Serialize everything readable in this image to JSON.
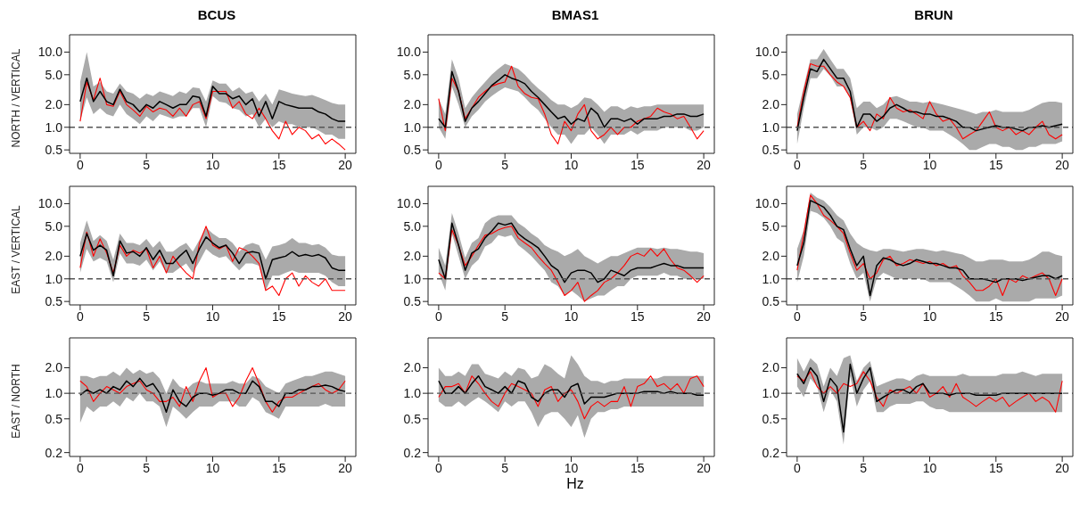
{
  "chart_data": [
    {
      "type": "line",
      "title": "BCUS",
      "ylabel": "NORTH / VERTICAL",
      "log": true,
      "xlim": [
        -0.8,
        20.8
      ],
      "xticks": [
        0,
        5,
        10,
        15,
        20
      ],
      "ylim": [
        0.45,
        17
      ],
      "yticks": [
        {
          "value": 0.5,
          "label": "0.5"
        },
        {
          "value": 1,
          "label": "1.0"
        },
        {
          "value": 2,
          "label": "2.0"
        },
        {
          "value": 5,
          "label": "5.0"
        },
        {
          "value": 10,
          "label": "10.0"
        }
      ],
      "ref_lines": [
        {
          "axis": "y",
          "value": 1,
          "line_style": "dashed",
          "color": "#555555"
        }
      ],
      "x": [
        0,
        0.5,
        1,
        1.5,
        2,
        2.5,
        3,
        3.5,
        4,
        4.5,
        5,
        5.5,
        6,
        6.5,
        7,
        7.5,
        8,
        8.5,
        9,
        9.5,
        10,
        10.5,
        11,
        11.5,
        12,
        12.5,
        13,
        13.5,
        14,
        14.5,
        15,
        15.5,
        16,
        16.5,
        17,
        17.5,
        18,
        18.5,
        19,
        19.5,
        20
      ],
      "series": [
        {
          "color": "#ff0000",
          "values": [
            1.2,
            4.0,
            2.3,
            4.5,
            2.0,
            1.9,
            3.0,
            2.0,
            1.7,
            1.4,
            1.9,
            1.6,
            1.8,
            1.7,
            1.4,
            1.8,
            1.4,
            2.0,
            2.2,
            1.3,
            3.0,
            3.0,
            3.0,
            1.8,
            2.2,
            1.5,
            1.3,
            1.8,
            1.3,
            0.9,
            0.7,
            1.2,
            0.8,
            1.0,
            0.9,
            0.7,
            0.8,
            0.6,
            0.7,
            0.6,
            0.5
          ]
        },
        {
          "color": "#000000",
          "values": [
            2.2,
            4.5,
            2.2,
            3.0,
            2.2,
            2.0,
            3.2,
            2.2,
            2.0,
            1.6,
            2.0,
            1.8,
            2.2,
            2.0,
            1.8,
            2.0,
            2.0,
            2.6,
            2.5,
            1.4,
            3.5,
            2.8,
            2.8,
            2.4,
            2.6,
            2.0,
            2.4,
            1.4,
            2.2,
            1.3,
            2.2,
            2.0,
            1.9,
            1.8,
            1.8,
            1.8,
            1.6,
            1.5,
            1.3,
            1.2,
            1.2
          ],
          "lower": [
            1.2,
            2.5,
            1.5,
            1.8,
            1.5,
            1.4,
            2.0,
            1.5,
            1.3,
            1.1,
            1.4,
            1.2,
            1.5,
            1.4,
            1.3,
            1.4,
            1.4,
            1.8,
            1.8,
            1.0,
            2.6,
            2.2,
            2.1,
            1.8,
            1.7,
            1.4,
            1.5,
            1.0,
            1.3,
            1.0,
            1.2,
            1.1,
            1.1,
            1.0,
            1.0,
            1.0,
            0.9,
            0.8,
            0.8,
            0.7,
            0.7
          ],
          "upper": [
            4.0,
            10.0,
            3.5,
            4.0,
            3.0,
            2.8,
            3.8,
            3.0,
            2.8,
            2.4,
            2.8,
            2.6,
            3.0,
            2.8,
            2.6,
            3.0,
            2.8,
            3.4,
            3.3,
            2.2,
            4.2,
            3.8,
            3.8,
            3.0,
            3.4,
            2.8,
            3.0,
            2.2,
            2.8,
            2.0,
            3.2,
            3.0,
            2.8,
            2.7,
            2.6,
            2.7,
            2.5,
            2.3,
            2.1,
            2.0,
            2.0
          ]
        }
      ]
    },
    {
      "type": "line",
      "title": "BMAS1",
      "log": true,
      "xlim": [
        -0.8,
        20.8
      ],
      "xticks": [
        0,
        5,
        10,
        15,
        20
      ],
      "ylim": [
        0.45,
        17
      ],
      "yticks": [
        {
          "value": 0.5,
          "label": "0.5"
        },
        {
          "value": 1,
          "label": "1.0"
        },
        {
          "value": 2,
          "label": "2.0"
        },
        {
          "value": 5,
          "label": "5.0"
        },
        {
          "value": 10,
          "label": "10.0"
        }
      ],
      "ref_lines": [
        {
          "axis": "y",
          "value": 1,
          "line_style": "dashed",
          "color": "#555555"
        }
      ],
      "x": [
        0,
        0.5,
        1,
        1.5,
        2,
        2.5,
        3,
        3.5,
        4,
        4.5,
        5,
        5.5,
        6,
        6.5,
        7,
        7.5,
        8,
        8.5,
        9,
        9.5,
        10,
        10.5,
        11,
        11.5,
        12,
        12.5,
        13,
        13.5,
        14,
        14.5,
        15,
        15.5,
        16,
        16.5,
        17,
        17.5,
        18,
        18.5,
        19,
        19.5,
        20
      ],
      "series": [
        {
          "color": "#ff0000",
          "values": [
            2.4,
            0.9,
            4.5,
            3.0,
            1.3,
            1.8,
            2.5,
            3.0,
            3.5,
            3.8,
            4.0,
            6.5,
            3.5,
            2.8,
            2.5,
            2.4,
            1.5,
            0.8,
            0.6,
            1.2,
            0.9,
            1.5,
            2.0,
            0.9,
            0.7,
            0.8,
            1.0,
            0.8,
            1.0,
            1.0,
            1.2,
            1.3,
            1.4,
            1.8,
            1.6,
            1.5,
            1.3,
            1.4,
            1.0,
            0.7,
            0.9
          ]
        },
        {
          "color": "#000000",
          "values": [
            1.3,
            1.0,
            5.5,
            3.0,
            1.2,
            1.8,
            2.2,
            2.8,
            3.6,
            4.2,
            5.0,
            4.5,
            4.2,
            3.8,
            3.0,
            2.5,
            2.0,
            1.6,
            1.3,
            1.4,
            1.1,
            1.3,
            1.2,
            1.8,
            1.5,
            1.0,
            1.3,
            1.3,
            1.2,
            1.3,
            1.1,
            1.3,
            1.3,
            1.3,
            1.4,
            1.4,
            1.5,
            1.5,
            1.4,
            1.4,
            1.5
          ],
          "lower": [
            1.0,
            0.7,
            3.5,
            2.0,
            1.0,
            1.4,
            1.7,
            2.2,
            2.6,
            3.0,
            3.4,
            3.2,
            3.0,
            2.5,
            2.0,
            1.7,
            1.3,
            1.0,
            0.8,
            0.8,
            0.6,
            0.8,
            0.8,
            1.0,
            0.8,
            0.6,
            0.8,
            0.8,
            0.8,
            0.9,
            0.8,
            0.9,
            0.9,
            0.9,
            1.0,
            1.0,
            1.0,
            1.0,
            0.9,
            0.9,
            1.0
          ],
          "upper": [
            2.4,
            1.5,
            8.0,
            4.5,
            1.8,
            2.5,
            3.2,
            4.0,
            5.0,
            6.0,
            7.0,
            6.5,
            6.0,
            5.0,
            4.0,
            3.3,
            2.8,
            2.3,
            2.0,
            2.0,
            1.8,
            2.0,
            2.5,
            2.4,
            2.0,
            1.6,
            1.9,
            1.9,
            1.7,
            1.9,
            1.8,
            1.9,
            1.9,
            2.0,
            2.0,
            2.0,
            2.0,
            2.0,
            2.0,
            2.0,
            2.0
          ]
        }
      ]
    },
    {
      "type": "line",
      "title": "BRUN",
      "log": true,
      "xlim": [
        -0.8,
        20.8
      ],
      "xticks": [
        0,
        5,
        10,
        15,
        20
      ],
      "ylim": [
        0.45,
        17
      ],
      "yticks": [
        {
          "value": 0.5,
          "label": "0.5"
        },
        {
          "value": 1,
          "label": "1.0"
        },
        {
          "value": 2,
          "label": "2.0"
        },
        {
          "value": 5,
          "label": "5.0"
        },
        {
          "value": 10,
          "label": "10.0"
        }
      ],
      "ref_lines": [
        {
          "axis": "y",
          "value": 1,
          "line_style": "dashed",
          "color": "#555555"
        }
      ],
      "x": [
        0,
        0.5,
        1,
        1.5,
        2,
        2.5,
        3,
        3.5,
        4,
        4.5,
        5,
        5.5,
        6,
        6.5,
        7,
        7.5,
        8,
        8.5,
        9,
        9.5,
        10,
        10.5,
        11,
        11.5,
        12,
        12.5,
        13,
        13.5,
        14,
        14.5,
        15,
        15.5,
        16,
        16.5,
        17,
        17.5,
        18,
        18.5,
        19,
        19.5,
        20
      ],
      "series": [
        {
          "color": "#ff0000",
          "values": [
            1.0,
            3.0,
            7.0,
            6.5,
            6.5,
            5.0,
            4.0,
            3.5,
            2.5,
            1.0,
            1.2,
            0.9,
            1.5,
            1.3,
            2.5,
            1.8,
            1.6,
            1.7,
            1.5,
            1.3,
            2.2,
            1.5,
            1.2,
            1.3,
            1.0,
            0.7,
            0.8,
            0.9,
            1.2,
            1.6,
            1.0,
            0.9,
            1.0,
            0.8,
            0.9,
            0.8,
            1.0,
            1.2,
            0.8,
            0.7,
            0.8
          ]
        },
        {
          "color": "#000000",
          "values": [
            0.9,
            2.5,
            6.0,
            5.5,
            8.0,
            6.0,
            4.5,
            4.5,
            3.0,
            1.0,
            1.5,
            1.5,
            1.2,
            1.4,
            1.8,
            2.0,
            1.8,
            1.6,
            1.6,
            1.5,
            1.5,
            1.4,
            1.4,
            1.3,
            1.2,
            1.0,
            1.0,
            0.9,
            0.95,
            1.0,
            1.05,
            1.0,
            1.0,
            0.95,
            0.9,
            1.0,
            1.0,
            1.05,
            1.0,
            1.05,
            1.1
          ],
          "lower": [
            0.6,
            1.8,
            4.5,
            4.5,
            6.0,
            4.8,
            3.5,
            3.5,
            2.4,
            0.8,
            1.0,
            1.0,
            0.9,
            1.0,
            1.3,
            1.3,
            1.2,
            1.1,
            1.0,
            1.0,
            0.9,
            0.9,
            0.9,
            0.8,
            0.7,
            0.6,
            0.5,
            0.5,
            0.55,
            0.6,
            0.6,
            0.55,
            0.55,
            0.5,
            0.5,
            0.55,
            0.55,
            0.6,
            0.6,
            0.6,
            0.65
          ],
          "upper": [
            1.5,
            3.5,
            8.0,
            8.0,
            11.0,
            8.0,
            6.0,
            6.0,
            4.5,
            1.8,
            2.2,
            2.2,
            1.8,
            2.0,
            2.5,
            2.6,
            2.4,
            2.2,
            2.2,
            2.1,
            2.2,
            2.1,
            2.0,
            1.9,
            1.8,
            1.7,
            1.6,
            1.5,
            1.6,
            1.6,
            1.7,
            1.6,
            1.6,
            1.6,
            1.6,
            1.7,
            1.9,
            2.1,
            2.2,
            2.2,
            2.1
          ]
        }
      ]
    },
    {
      "type": "line",
      "ylabel": "EAST / VERTICAL",
      "log": true,
      "xlim": [
        -0.8,
        20.8
      ],
      "xticks": [
        0,
        5,
        10,
        15,
        20
      ],
      "ylim": [
        0.45,
        17
      ],
      "yticks": [
        {
          "value": 0.5,
          "label": "0.5"
        },
        {
          "value": 1,
          "label": "1.0"
        },
        {
          "value": 2,
          "label": "2.0"
        },
        {
          "value": 5,
          "label": "5.0"
        },
        {
          "value": 10,
          "label": "10.0"
        }
      ],
      "ref_lines": [
        {
          "axis": "y",
          "value": 1,
          "line_style": "dashed",
          "color": "#555555"
        }
      ],
      "x": [
        0,
        0.5,
        1,
        1.5,
        2,
        2.5,
        3,
        3.5,
        4,
        4.5,
        5,
        5.5,
        6,
        6.5,
        7,
        7.5,
        8,
        8.5,
        9,
        9.5,
        10,
        10.5,
        11,
        11.5,
        12,
        12.5,
        13,
        13.5,
        14,
        14.5,
        15,
        15.5,
        16,
        16.5,
        17,
        17.5,
        18,
        18.5,
        19,
        19.5,
        20
      ],
      "series": [
        {
          "color": "#ff0000",
          "values": [
            1.4,
            4.2,
            2.0,
            3.4,
            2.2,
            1.2,
            2.8,
            2.0,
            2.4,
            2.2,
            2.5,
            1.4,
            2.0,
            1.2,
            2.0,
            1.5,
            1.2,
            1.0,
            3.0,
            5.0,
            2.8,
            2.5,
            2.8,
            1.7,
            2.6,
            2.4,
            2.0,
            1.6,
            0.7,
            0.8,
            0.6,
            1.0,
            1.2,
            0.8,
            1.1,
            0.9,
            0.8,
            1.0,
            0.7,
            0.7,
            0.7
          ]
        },
        {
          "color": "#000000",
          "values": [
            2.0,
            4.0,
            2.4,
            2.8,
            2.4,
            1.1,
            3.2,
            2.2,
            2.3,
            2.0,
            2.6,
            1.8,
            2.4,
            1.6,
            1.6,
            2.0,
            2.4,
            1.6,
            2.5,
            3.6,
            3.0,
            2.6,
            2.8,
            2.2,
            1.6,
            2.2,
            2.3,
            2.2,
            1.0,
            1.8,
            1.9,
            2.0,
            2.3,
            2.0,
            2.1,
            2.0,
            2.1,
            1.9,
            1.4,
            1.3,
            1.3
          ],
          "lower": [
            1.2,
            2.5,
            1.7,
            1.9,
            1.7,
            0.9,
            2.2,
            1.6,
            1.6,
            1.5,
            1.8,
            1.3,
            1.7,
            1.2,
            1.2,
            1.4,
            1.6,
            1.2,
            1.7,
            2.5,
            2.1,
            1.9,
            2.0,
            1.6,
            1.3,
            1.6,
            1.6,
            1.5,
            0.7,
            1.1,
            1.1,
            1.2,
            1.3,
            1.2,
            1.2,
            1.2,
            1.2,
            1.1,
            0.9,
            0.8,
            0.8
          ],
          "upper": [
            3.0,
            6.0,
            3.2,
            3.8,
            3.2,
            1.8,
            4.0,
            3.0,
            3.0,
            2.8,
            3.4,
            2.6,
            3.2,
            2.3,
            2.3,
            2.7,
            3.0,
            2.3,
            3.3,
            4.8,
            4.0,
            3.5,
            3.5,
            3.0,
            2.3,
            2.8,
            3.0,
            2.8,
            1.8,
            2.7,
            2.8,
            3.0,
            3.5,
            3.0,
            3.0,
            2.8,
            2.9,
            2.6,
            2.1,
            2.0,
            2.0
          ]
        }
      ]
    },
    {
      "type": "line",
      "log": true,
      "xlim": [
        -0.8,
        20.8
      ],
      "xticks": [
        0,
        5,
        10,
        15,
        20
      ],
      "ylim": [
        0.45,
        17
      ],
      "yticks": [
        {
          "value": 0.5,
          "label": "0.5"
        },
        {
          "value": 1,
          "label": "1.0"
        },
        {
          "value": 2,
          "label": "2.0"
        },
        {
          "value": 5,
          "label": "5.0"
        },
        {
          "value": 10,
          "label": "10.0"
        }
      ],
      "ref_lines": [
        {
          "axis": "y",
          "value": 1,
          "line_style": "dashed",
          "color": "#555555"
        }
      ],
      "x": [
        0,
        0.5,
        1,
        1.5,
        2,
        2.5,
        3,
        3.5,
        4,
        4.5,
        5,
        5.5,
        6,
        6.5,
        7,
        7.5,
        8,
        8.5,
        9,
        9.5,
        10,
        10.5,
        11,
        11.5,
        12,
        12.5,
        13,
        13.5,
        14,
        14.5,
        15,
        15.5,
        16,
        16.5,
        17,
        17.5,
        18,
        18.5,
        19,
        19.5,
        20
      ],
      "series": [
        {
          "color": "#ff0000",
          "values": [
            1.2,
            1.0,
            4.5,
            2.8,
            1.5,
            2.0,
            2.8,
            3.8,
            4.0,
            4.5,
            4.8,
            5.0,
            3.5,
            3.0,
            2.6,
            2.0,
            1.6,
            1.3,
            0.9,
            0.6,
            0.7,
            0.9,
            0.5,
            0.6,
            0.7,
            0.9,
            1.0,
            1.2,
            1.5,
            2.0,
            2.2,
            2.0,
            2.5,
            2.0,
            2.5,
            1.8,
            1.4,
            1.3,
            1.1,
            0.9,
            1.1
          ]
        },
        {
          "color": "#000000",
          "values": [
            1.8,
            1.0,
            5.5,
            2.8,
            1.3,
            2.2,
            2.5,
            3.5,
            4.3,
            5.5,
            5.2,
            5.5,
            4.0,
            3.4,
            3.0,
            2.6,
            2.0,
            1.5,
            1.3,
            0.9,
            1.2,
            1.3,
            1.3,
            1.2,
            0.9,
            1.0,
            1.3,
            1.2,
            1.1,
            1.3,
            1.4,
            1.4,
            1.4,
            1.5,
            1.6,
            1.5,
            1.5,
            1.4,
            1.4,
            1.4,
            1.4
          ],
          "lower": [
            1.2,
            0.7,
            4.0,
            2.0,
            1.0,
            1.5,
            1.8,
            2.7,
            3.0,
            3.8,
            3.6,
            3.8,
            2.8,
            2.4,
            2.0,
            1.6,
            1.3,
            0.9,
            0.8,
            0.6,
            0.7,
            0.6,
            0.5,
            0.55,
            0.6,
            0.6,
            0.7,
            0.8,
            0.8,
            1.0,
            1.1,
            1.1,
            1.1,
            1.1,
            1.2,
            1.1,
            1.1,
            1.0,
            1.0,
            1.0,
            1.0
          ],
          "upper": [
            2.6,
            1.5,
            7.5,
            4.0,
            1.9,
            3.0,
            3.5,
            5.5,
            6.5,
            7.0,
            7.0,
            7.0,
            5.5,
            4.8,
            4.0,
            3.5,
            2.8,
            2.5,
            2.3,
            2.0,
            2.2,
            2.5,
            2.0,
            1.8,
            1.6,
            1.8,
            2.0,
            2.0,
            2.2,
            2.4,
            2.6,
            2.6,
            2.6,
            2.5,
            2.6,
            2.5,
            2.5,
            2.4,
            2.3,
            2.3,
            2.2
          ]
        }
      ]
    },
    {
      "type": "line",
      "log": true,
      "xlim": [
        -0.8,
        20.8
      ],
      "xticks": [
        0,
        5,
        10,
        15,
        20
      ],
      "ylim": [
        0.45,
        17
      ],
      "yticks": [
        {
          "value": 0.5,
          "label": "0.5"
        },
        {
          "value": 1,
          "label": "1.0"
        },
        {
          "value": 2,
          "label": "2.0"
        },
        {
          "value": 5,
          "label": "5.0"
        },
        {
          "value": 10,
          "label": "10.0"
        }
      ],
      "ref_lines": [
        {
          "axis": "y",
          "value": 1,
          "line_style": "dashed",
          "color": "#555555"
        }
      ],
      "x": [
        0,
        0.5,
        1,
        1.5,
        2,
        2.5,
        3,
        3.5,
        4,
        4.5,
        5,
        5.5,
        6,
        6.5,
        7,
        7.5,
        8,
        8.5,
        9,
        9.5,
        10,
        10.5,
        11,
        11.5,
        12,
        12.5,
        13,
        13.5,
        14,
        14.5,
        15,
        15.5,
        16,
        16.5,
        17,
        17.5,
        18,
        18.5,
        19,
        19.5,
        20
      ],
      "series": [
        {
          "color": "#ff0000",
          "values": [
            1.3,
            4.0,
            13.0,
            10.0,
            7.0,
            6.0,
            5.0,
            4.0,
            2.2,
            1.3,
            1.6,
            1.0,
            1.2,
            1.8,
            2.0,
            1.5,
            1.6,
            1.8,
            1.7,
            1.6,
            1.7,
            1.5,
            1.6,
            1.4,
            1.5,
            1.1,
            0.9,
            0.7,
            0.7,
            0.8,
            1.0,
            0.6,
            1.0,
            0.9,
            1.1,
            1.0,
            1.1,
            1.2,
            1.0,
            0.6,
            1.0
          ]
        },
        {
          "color": "#000000",
          "values": [
            1.5,
            3.0,
            11.0,
            10.0,
            9.0,
            7.0,
            5.0,
            4.5,
            2.5,
            1.5,
            2.0,
            0.6,
            1.5,
            1.9,
            1.8,
            1.6,
            1.5,
            1.6,
            1.8,
            1.7,
            1.6,
            1.6,
            1.5,
            1.4,
            1.4,
            1.3,
            1.0,
            1.0,
            1.0,
            0.95,
            0.9,
            1.0,
            1.0,
            1.0,
            0.95,
            1.0,
            1.05,
            1.1,
            1.1,
            1.0,
            1.1
          ],
          "lower": [
            0.9,
            2.0,
            8.0,
            7.5,
            6.5,
            5.0,
            3.5,
            3.0,
            1.6,
            1.0,
            1.2,
            0.5,
            1.0,
            1.2,
            1.1,
            1.0,
            1.0,
            1.0,
            1.0,
            1.0,
            0.9,
            0.9,
            0.9,
            0.9,
            0.8,
            0.7,
            0.6,
            0.5,
            0.5,
            0.5,
            0.55,
            0.5,
            0.5,
            0.5,
            0.5,
            0.5,
            0.55,
            0.55,
            0.55,
            0.55,
            0.6
          ],
          "upper": [
            2.5,
            4.5,
            14.0,
            12.0,
            11.0,
            9.0,
            7.0,
            6.0,
            4.0,
            3.0,
            2.6,
            2.4,
            2.3,
            2.5,
            2.5,
            2.4,
            2.3,
            2.4,
            2.5,
            2.5,
            2.4,
            2.3,
            2.4,
            2.3,
            2.2,
            2.1,
            1.9,
            1.7,
            1.7,
            1.8,
            1.8,
            1.8,
            1.7,
            1.7,
            1.7,
            1.8,
            2.0,
            2.3,
            2.3,
            2.1,
            2.0
          ]
        }
      ]
    },
    {
      "type": "line",
      "ylabel": "EAST / NORTH",
      "log": true,
      "xlim": [
        -0.8,
        20.8
      ],
      "xticks": [
        0,
        5,
        10,
        15,
        20
      ],
      "ylim": [
        0.18,
        4.5
      ],
      "yticks": [
        {
          "value": 0.2,
          "label": "0.2"
        },
        {
          "value": 0.5,
          "label": "0.5"
        },
        {
          "value": 1,
          "label": "1.0"
        },
        {
          "value": 2,
          "label": "2.0"
        }
      ],
      "ref_lines": [
        {
          "axis": "y",
          "value": 1,
          "line_style": "dashed",
          "color": "#555555"
        }
      ],
      "x": [
        0,
        0.5,
        1,
        1.5,
        2,
        2.5,
        3,
        3.5,
        4,
        4.5,
        5,
        5.5,
        6,
        6.5,
        7,
        7.5,
        8,
        8.5,
        9,
        9.5,
        10,
        10.5,
        11,
        11.5,
        12,
        12.5,
        13,
        13.5,
        14,
        14.5,
        15,
        15.5,
        16,
        16.5,
        17,
        17.5,
        18,
        18.5,
        19,
        19.5,
        20
      ],
      "series": [
        {
          "color": "#ff0000",
          "values": [
            1.4,
            1.2,
            0.8,
            1.0,
            1.2,
            1.1,
            1.0,
            1.2,
            1.3,
            1.4,
            1.1,
            1.0,
            0.8,
            0.8,
            0.9,
            0.7,
            1.2,
            0.8,
            1.4,
            2.0,
            0.9,
            1.0,
            1.0,
            0.7,
            0.9,
            1.4,
            2.0,
            1.3,
            0.8,
            0.6,
            0.8,
            0.9,
            0.9,
            1.0,
            1.1,
            1.2,
            1.3,
            1.1,
            1.0,
            1.1,
            1.4
          ]
        },
        {
          "color": "#000000",
          "values": [
            0.95,
            1.1,
            1.0,
            1.1,
            1.0,
            1.2,
            1.1,
            1.4,
            1.2,
            1.5,
            1.2,
            1.3,
            1.0,
            0.6,
            1.1,
            0.8,
            0.7,
            0.9,
            1.0,
            1.0,
            0.95,
            1.0,
            1.1,
            1.1,
            1.0,
            1.0,
            1.4,
            1.2,
            0.8,
            0.8,
            0.7,
            1.0,
            1.0,
            1.1,
            1.1,
            1.2,
            1.2,
            1.25,
            1.2,
            1.1,
            1.05
          ],
          "lower": [
            0.45,
            0.7,
            0.6,
            0.7,
            0.7,
            0.8,
            0.7,
            0.9,
            0.8,
            1.0,
            0.8,
            0.8,
            0.7,
            0.4,
            0.7,
            0.6,
            0.5,
            0.6,
            0.7,
            0.7,
            0.7,
            0.8,
            0.8,
            0.8,
            0.7,
            0.7,
            0.9,
            0.8,
            0.6,
            0.55,
            0.5,
            0.7,
            0.7,
            0.7,
            0.7,
            0.7,
            0.7,
            0.75,
            0.7,
            0.7,
            0.7
          ],
          "upper": [
            1.6,
            1.6,
            1.5,
            1.6,
            1.6,
            1.8,
            1.6,
            2.0,
            1.7,
            1.9,
            1.7,
            1.8,
            1.5,
            1.0,
            1.5,
            1.2,
            1.1,
            1.3,
            1.4,
            1.3,
            1.3,
            1.3,
            1.3,
            1.4,
            1.3,
            1.3,
            1.6,
            1.5,
            1.2,
            1.1,
            1.0,
            1.3,
            1.4,
            1.5,
            1.6,
            1.6,
            1.7,
            1.8,
            1.8,
            1.7,
            1.6
          ]
        }
      ]
    },
    {
      "type": "line",
      "xlabel": "Hz",
      "log": true,
      "xlim": [
        -0.8,
        20.8
      ],
      "xticks": [
        0,
        5,
        10,
        15,
        20
      ],
      "ylim": [
        0.18,
        4.5
      ],
      "yticks": [
        {
          "value": 0.2,
          "label": "0.2"
        },
        {
          "value": 0.5,
          "label": "0.5"
        },
        {
          "value": 1,
          "label": "1.0"
        },
        {
          "value": 2,
          "label": "2.0"
        }
      ],
      "ref_lines": [
        {
          "axis": "y",
          "value": 1,
          "line_style": "dashed",
          "color": "#555555"
        }
      ],
      "x": [
        0,
        0.5,
        1,
        1.5,
        2,
        2.5,
        3,
        3.5,
        4,
        4.5,
        5,
        5.5,
        6,
        6.5,
        7,
        7.5,
        8,
        8.5,
        9,
        9.5,
        10,
        10.5,
        11,
        11.5,
        12,
        12.5,
        13,
        13.5,
        14,
        14.5,
        15,
        15.5,
        16,
        16.5,
        17,
        17.5,
        18,
        18.5,
        19,
        19.5,
        20
      ],
      "series": [
        {
          "color": "#ff0000",
          "values": [
            0.9,
            1.2,
            1.2,
            1.3,
            1.0,
            1.6,
            1.3,
            1.0,
            0.8,
            0.7,
            1.0,
            1.3,
            1.2,
            1.1,
            1.0,
            0.7,
            1.1,
            1.2,
            0.8,
            1.0,
            1.1,
            0.8,
            0.5,
            0.7,
            0.8,
            0.7,
            0.8,
            0.8,
            1.2,
            0.7,
            1.2,
            1.3,
            1.6,
            1.2,
            1.3,
            1.1,
            1.3,
            1.0,
            1.5,
            1.6,
            1.2
          ]
        },
        {
          "color": "#000000",
          "values": [
            1.4,
            1.0,
            1.0,
            1.2,
            1.0,
            1.3,
            1.6,
            1.2,
            1.1,
            1.0,
            1.2,
            1.0,
            1.4,
            1.3,
            0.9,
            0.8,
            1.0,
            1.1,
            1.1,
            0.9,
            1.2,
            1.3,
            0.75,
            0.9,
            0.9,
            0.9,
            0.95,
            1.0,
            1.0,
            1.0,
            1.0,
            1.05,
            1.05,
            1.05,
            1.0,
            1.05,
            1.0,
            1.0,
            1.0,
            0.95,
            0.95
          ],
          "lower": [
            0.8,
            0.7,
            0.7,
            0.8,
            0.7,
            0.8,
            0.9,
            0.8,
            0.7,
            0.6,
            0.8,
            0.7,
            0.8,
            0.8,
            0.6,
            0.4,
            0.55,
            0.6,
            0.6,
            0.5,
            0.4,
            0.55,
            0.3,
            0.5,
            0.6,
            0.6,
            0.65,
            0.65,
            0.7,
            0.7,
            0.7,
            0.7,
            0.7,
            0.7,
            0.7,
            0.7,
            0.7,
            0.7,
            0.7,
            0.7,
            0.7
          ],
          "upper": [
            2.0,
            1.6,
            1.6,
            1.8,
            1.6,
            2.2,
            2.2,
            1.7,
            1.6,
            1.5,
            1.8,
            1.6,
            2.0,
            1.9,
            1.5,
            1.6,
            2.2,
            2.0,
            1.7,
            1.5,
            2.8,
            2.2,
            1.6,
            1.4,
            1.4,
            1.3,
            1.4,
            1.4,
            1.5,
            1.5,
            1.5,
            1.5,
            1.5,
            1.5,
            1.6,
            1.6,
            1.6,
            1.6,
            1.6,
            1.6,
            1.6
          ]
        }
      ]
    },
    {
      "type": "line",
      "log": true,
      "xlim": [
        -0.8,
        20.8
      ],
      "xticks": [
        0,
        5,
        10,
        15,
        20
      ],
      "ylim": [
        0.18,
        4.5
      ],
      "yticks": [
        {
          "value": 0.2,
          "label": "0.2"
        },
        {
          "value": 0.5,
          "label": "0.5"
        },
        {
          "value": 1,
          "label": "1.0"
        },
        {
          "value": 2,
          "label": "2.0"
        }
      ],
      "ref_lines": [
        {
          "axis": "y",
          "value": 1,
          "line_style": "dashed",
          "color": "#555555"
        }
      ],
      "x": [
        0,
        0.5,
        1,
        1.5,
        2,
        2.5,
        3,
        3.5,
        4,
        4.5,
        5,
        5.5,
        6,
        6.5,
        7,
        7.5,
        8,
        8.5,
        9,
        9.5,
        10,
        10.5,
        11,
        11.5,
        12,
        12.5,
        13,
        13.5,
        14,
        14.5,
        15,
        15.5,
        16,
        16.5,
        17,
        17.5,
        18,
        18.5,
        19,
        19.5,
        20
      ],
      "series": [
        {
          "color": "#ff0000",
          "values": [
            1.6,
            1.4,
            1.8,
            1.2,
            1.0,
            1.2,
            1.0,
            1.3,
            1.2,
            1.3,
            1.8,
            1.4,
            0.9,
            0.7,
            1.1,
            1.0,
            1.1,
            1.2,
            1.0,
            1.3,
            0.9,
            1.0,
            1.2,
            0.9,
            1.3,
            0.9,
            0.8,
            0.7,
            0.8,
            0.9,
            0.8,
            0.9,
            0.7,
            0.8,
            0.9,
            1.0,
            0.8,
            0.9,
            0.8,
            0.6,
            1.4
          ]
        },
        {
          "color": "#000000",
          "values": [
            1.7,
            1.3,
            2.0,
            1.6,
            0.8,
            1.5,
            1.2,
            0.35,
            2.2,
            1.0,
            1.5,
            2.0,
            0.8,
            0.9,
            1.0,
            1.1,
            1.1,
            1.0,
            1.2,
            1.3,
            1.0,
            1.0,
            1.0,
            0.95,
            1.0,
            1.0,
            1.0,
            0.95,
            0.95,
            0.95,
            0.95,
            1.0,
            1.0,
            1.0,
            1.0,
            1.0,
            1.0,
            1.0,
            1.0,
            1.0,
            1.0
          ],
          "lower": [
            1.2,
            0.9,
            1.5,
            1.2,
            0.6,
            1.1,
            0.8,
            0.25,
            1.6,
            0.7,
            1.1,
            1.4,
            0.6,
            0.6,
            0.7,
            0.75,
            0.75,
            0.75,
            0.8,
            0.8,
            0.7,
            0.65,
            0.65,
            0.6,
            0.6,
            0.6,
            0.6,
            0.6,
            0.6,
            0.6,
            0.6,
            0.6,
            0.6,
            0.6,
            0.6,
            0.6,
            0.6,
            0.6,
            0.6,
            0.6,
            0.6
          ],
          "upper": [
            2.6,
            1.8,
            2.6,
            2.2,
            1.2,
            2.0,
            1.6,
            2.6,
            2.8,
            1.4,
            2.0,
            2.4,
            1.2,
            1.3,
            1.4,
            1.5,
            1.5,
            1.4,
            1.6,
            1.7,
            1.6,
            1.6,
            1.6,
            1.6,
            1.6,
            1.7,
            1.6,
            1.6,
            1.6,
            1.6,
            1.6,
            1.7,
            1.7,
            1.7,
            1.8,
            1.7,
            1.6,
            1.7,
            1.7,
            1.7,
            1.7
          ]
        }
      ]
    }
  ]
}
